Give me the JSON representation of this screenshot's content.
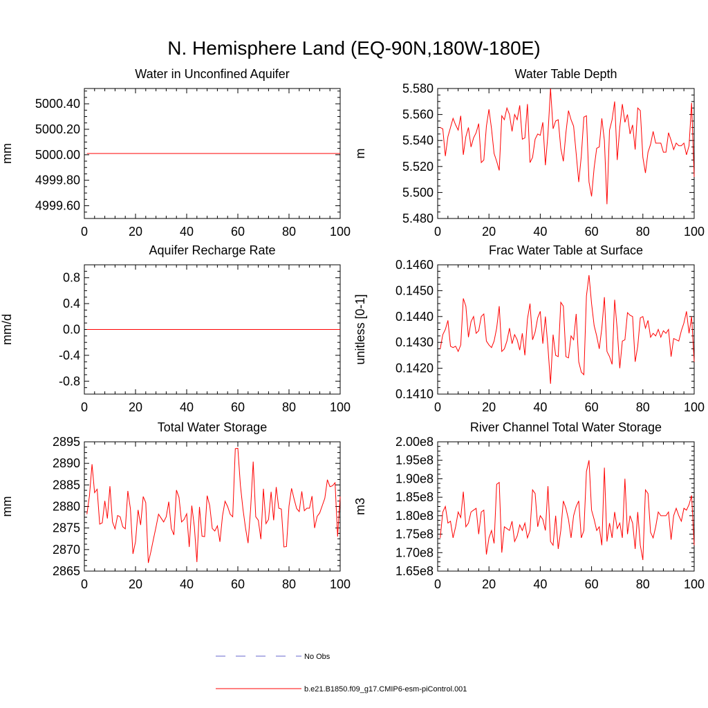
{
  "title": "N. Hemisphere Land (EQ-90N,180W-180E)",
  "chart_data": [
    {
      "type": "line",
      "title": "Water in Unconfined Aquifer",
      "ylabel": "mm",
      "xlim": [
        0,
        100
      ],
      "ylim": [
        4999.5,
        5000.52
      ],
      "xticks": [
        0,
        20,
        40,
        60,
        80,
        100
      ],
      "xtick_labels": [
        "0",
        "20",
        "40",
        "60",
        "80",
        "100"
      ],
      "yticks": [
        4999.6,
        4999.8,
        5000.0,
        5000.2,
        5000.4
      ],
      "ytick_labels": [
        "4999.60",
        "4999.80",
        "5000.00",
        "5000.20",
        "5000.40"
      ],
      "series": [
        {
          "color": "#ff0000",
          "x": [
            1,
            100
          ],
          "y": [
            5000.01,
            5000.01
          ]
        }
      ]
    },
    {
      "type": "line",
      "title": "Water Table Depth",
      "ylabel": "m",
      "xlim": [
        0,
        100
      ],
      "ylim": [
        5.48,
        5.58
      ],
      "xticks": [
        0,
        20,
        40,
        60,
        80,
        100
      ],
      "xtick_labels": [
        "0",
        "20",
        "40",
        "60",
        "80",
        "100"
      ],
      "yticks": [
        5.48,
        5.5,
        5.52,
        5.54,
        5.56,
        5.58
      ],
      "ytick_labels": [
        "5.480",
        "5.500",
        "5.520",
        "5.540",
        "5.560",
        "5.580"
      ],
      "series": [
        {
          "color": "#ff0000",
          "x": [
            1,
            2,
            3,
            4,
            5,
            6,
            7,
            8,
            9,
            10,
            11,
            12,
            13,
            14,
            15,
            16,
            17,
            18,
            19,
            20,
            21,
            22,
            23,
            24,
            25,
            26,
            27,
            28,
            29,
            30,
            31,
            32,
            33,
            34,
            35,
            36,
            37,
            38,
            39,
            40,
            41,
            42,
            43,
            44,
            45,
            46,
            47,
            48,
            49,
            50,
            51,
            52,
            53,
            54,
            55,
            56,
            57,
            58,
            59,
            60,
            61,
            62,
            63,
            64,
            65,
            66,
            67,
            68,
            69,
            70,
            71,
            72,
            73,
            74,
            75,
            76,
            77,
            78,
            79,
            80,
            81,
            82,
            83,
            84,
            85,
            86,
            87,
            88,
            89,
            90,
            91,
            92,
            93,
            94,
            95,
            96,
            97,
            98,
            99,
            100
          ],
          "y": [
            5.55,
            5.549,
            5.528,
            5.543,
            5.55,
            5.557,
            5.552,
            5.548,
            5.559,
            5.529,
            5.543,
            5.55,
            5.535,
            5.542,
            5.546,
            5.553,
            5.523,
            5.525,
            5.551,
            5.564,
            5.549,
            5.53,
            5.524,
            5.517,
            5.559,
            5.556,
            5.565,
            5.56,
            5.547,
            5.56,
            5.556,
            5.567,
            5.541,
            5.542,
            5.568,
            5.523,
            5.527,
            5.541,
            5.545,
            5.544,
            5.554,
            5.521,
            5.545,
            5.58,
            5.549,
            5.555,
            5.556,
            5.534,
            5.524,
            5.546,
            5.563,
            5.556,
            5.551,
            5.53,
            5.508,
            5.528,
            5.558,
            5.559,
            5.508,
            5.497,
            5.519,
            5.534,
            5.535,
            5.557,
            5.54,
            5.491,
            5.548,
            5.556,
            5.57,
            5.525,
            5.55,
            5.568,
            5.554,
            5.56,
            5.545,
            5.552,
            5.533,
            5.565,
            5.563,
            5.527,
            5.515,
            5.531,
            5.537,
            5.547,
            5.538,
            5.538,
            5.538,
            5.531,
            5.531,
            5.546,
            5.54,
            5.533,
            5.538,
            5.536,
            5.536,
            5.538,
            5.529,
            5.536,
            5.569,
            5.512
          ]
        }
      ]
    },
    {
      "type": "line",
      "title": "Aquifer Recharge Rate",
      "ylabel": "mm/d",
      "xlim": [
        0,
        100
      ],
      "ylim": [
        -1.0,
        1.0
      ],
      "xticks": [
        0,
        20,
        40,
        60,
        80,
        100
      ],
      "xtick_labels": [
        "0",
        "20",
        "40",
        "60",
        "80",
        "100"
      ],
      "yticks": [
        -0.8,
        -0.4,
        0.0,
        0.4,
        0.8
      ],
      "ytick_labels": [
        "-0.8",
        "-0.4",
        "0.0",
        "0.4",
        "0.8"
      ],
      "series": [
        {
          "color": "#ff0000",
          "x": [
            1,
            100
          ],
          "y": [
            0.0,
            0.0
          ]
        }
      ]
    },
    {
      "type": "line",
      "title": "Frac Water Table at Surface",
      "ylabel": "unitless [0-1]",
      "xlim": [
        0,
        100
      ],
      "ylim": [
        0.141,
        0.146
      ],
      "xticks": [
        0,
        20,
        40,
        60,
        80,
        100
      ],
      "xtick_labels": [
        "0",
        "20",
        "40",
        "60",
        "80",
        "100"
      ],
      "yticks": [
        0.141,
        0.142,
        0.143,
        0.144,
        0.145,
        0.146
      ],
      "ytick_labels": [
        "0.1410",
        "0.1420",
        "0.1430",
        "0.1440",
        "0.1450",
        "0.1460"
      ],
      "series": [
        {
          "color": "#ff0000",
          "x": [
            1,
            2,
            3,
            4,
            5,
            6,
            7,
            8,
            9,
            10,
            11,
            12,
            13,
            14,
            15,
            16,
            17,
            18,
            19,
            20,
            21,
            22,
            23,
            24,
            25,
            26,
            27,
            28,
            29,
            30,
            31,
            32,
            33,
            34,
            35,
            36,
            37,
            38,
            39,
            40,
            41,
            42,
            43,
            44,
            45,
            46,
            47,
            48,
            49,
            50,
            51,
            52,
            53,
            54,
            55,
            56,
            57,
            58,
            59,
            60,
            61,
            62,
            63,
            64,
            65,
            66,
            67,
            68,
            69,
            70,
            71,
            72,
            73,
            74,
            75,
            76,
            77,
            78,
            79,
            80,
            81,
            82,
            83,
            84,
            85,
            86,
            87,
            88,
            89,
            90,
            91,
            92,
            93,
            94,
            95,
            96,
            97,
            98,
            99,
            100
          ],
          "y": [
            0.14275,
            0.1433,
            0.1435,
            0.14385,
            0.14285,
            0.1428,
            0.14285,
            0.14265,
            0.1429,
            0.1447,
            0.1444,
            0.1432,
            0.1438,
            0.144,
            0.14335,
            0.14345,
            0.144,
            0.1441,
            0.14305,
            0.1429,
            0.1428,
            0.14305,
            0.14355,
            0.1444,
            0.14265,
            0.14275,
            0.14305,
            0.14355,
            0.14295,
            0.1433,
            0.1431,
            0.1427,
            0.14335,
            0.1425,
            0.1439,
            0.1445,
            0.1431,
            0.1434,
            0.14395,
            0.1442,
            0.14295,
            0.144,
            0.1428,
            0.1414,
            0.1433,
            0.1425,
            0.14245,
            0.14455,
            0.1444,
            0.14245,
            0.1424,
            0.14325,
            0.1431,
            0.1441,
            0.14225,
            0.14185,
            0.14175,
            0.1448,
            0.1456,
            0.1445,
            0.14365,
            0.14325,
            0.14275,
            0.14355,
            0.14475,
            0.14265,
            0.14245,
            0.14215,
            0.14465,
            0.1435,
            0.142,
            0.14305,
            0.1431,
            0.14415,
            0.14405,
            0.144,
            0.14225,
            0.14285,
            0.14395,
            0.144,
            0.14355,
            0.14385,
            0.1432,
            0.14335,
            0.14325,
            0.1435,
            0.1432,
            0.14345,
            0.14335,
            0.1435,
            0.14245,
            0.14315,
            0.1431,
            0.14305,
            0.14345,
            0.14375,
            0.1442,
            0.14335,
            0.144,
            0.14225
          ]
        }
      ]
    },
    {
      "type": "line",
      "title": "Total Water Storage",
      "ylabel": "mm",
      "xlim": [
        0,
        100
      ],
      "ylim": [
        2865,
        2895
      ],
      "xticks": [
        0,
        20,
        40,
        60,
        80,
        100
      ],
      "xtick_labels": [
        "0",
        "20",
        "40",
        "60",
        "80",
        "100"
      ],
      "yticks": [
        2865,
        2870,
        2875,
        2880,
        2885,
        2890,
        2895
      ],
      "ytick_labels": [
        "2865",
        "2870",
        "2875",
        "2880",
        "2885",
        "2890",
        "2895"
      ],
      "series": [
        {
          "color": "#ff0000",
          "x": [
            1,
            2,
            3,
            4,
            5,
            6,
            7,
            8,
            9,
            10,
            11,
            12,
            13,
            14,
            15,
            16,
            17,
            18,
            19,
            20,
            21,
            22,
            23,
            24,
            25,
            26,
            27,
            28,
            29,
            30,
            31,
            32,
            33,
            34,
            35,
            36,
            37,
            38,
            39,
            40,
            41,
            42,
            43,
            44,
            45,
            46,
            47,
            48,
            49,
            50,
            51,
            52,
            53,
            54,
            55,
            56,
            57,
            58,
            59,
            60,
            61,
            62,
            63,
            64,
            65,
            66,
            67,
            68,
            69,
            70,
            71,
            72,
            73,
            74,
            75,
            76,
            77,
            78,
            79,
            80,
            81,
            82,
            83,
            84,
            85,
            86,
            87,
            88,
            89,
            90,
            91,
            92,
            93,
            94,
            95,
            96,
            97,
            98,
            99,
            100
          ],
          "y": [
            2878.2,
            2882.5,
            2889.8,
            2883.2,
            2884.0,
            2875.9,
            2876.2,
            2881.3,
            2877.2,
            2884.7,
            2876.4,
            2874.8,
            2877.9,
            2877.6,
            2875.3,
            2874.8,
            2883.6,
            2879.5,
            2869.0,
            2871.8,
            2879.2,
            2875.7,
            2882.3,
            2880.9,
            2866.9,
            2869.5,
            2872.4,
            2875.2,
            2878.2,
            2877.3,
            2876.4,
            2877.6,
            2881.1,
            2874.9,
            2873.4,
            2883.8,
            2882.1,
            2876.4,
            2877.0,
            2878.3,
            2870.6,
            2880.2,
            2875.3,
            2867.1,
            2879.9,
            2873.1,
            2873.0,
            2882.5,
            2880.2,
            2874.9,
            2874.3,
            2875.5,
            2871.8,
            2877.8,
            2881.2,
            2880.0,
            2878.2,
            2877.6,
            2893.4,
            2893.5,
            2884.9,
            2879.4,
            2875.0,
            2871.5,
            2879.5,
            2890.4,
            2877.6,
            2876.8,
            2872.4,
            2884.1,
            2876.0,
            2877.0,
            2883.4,
            2876.8,
            2884.5,
            2879.6,
            2879.4,
            2870.6,
            2870.7,
            2880.1,
            2884.2,
            2881.7,
            2879.5,
            2878.8,
            2883.5,
            2879.0,
            2879.6,
            2879.6,
            2882.4,
            2875.0,
            2877.7,
            2878.5,
            2880.2,
            2881.9,
            2886.2,
            2884.6,
            2884.8,
            2885.5,
            2873.0,
            2882.3
          ]
        }
      ]
    },
    {
      "type": "line",
      "title": "River Channel Total Water Storage",
      "ylabel": "m3",
      "xlim": [
        0,
        100
      ],
      "ylim": [
        1.65,
        2.0
      ],
      "xticks": [
        0,
        20,
        40,
        60,
        80,
        100
      ],
      "xtick_labels": [
        "0",
        "20",
        "40",
        "60",
        "80",
        "100"
      ],
      "yticks": [
        1.65,
        1.7,
        1.75,
        1.8,
        1.85,
        1.9,
        1.95,
        2.0
      ],
      "ytick_labels": [
        "1.65e8",
        "1.70e8",
        "1.75e8",
        "1.80e8",
        "1.85e8",
        "1.90e8",
        "1.95e8",
        "2.00e8"
      ],
      "y_unit_multiplier": "1e8",
      "series": [
        {
          "color": "#ff0000",
          "x": [
            1,
            2,
            3,
            4,
            5,
            6,
            7,
            8,
            9,
            10,
            11,
            12,
            13,
            14,
            15,
            16,
            17,
            18,
            19,
            20,
            21,
            22,
            23,
            24,
            25,
            26,
            27,
            28,
            29,
            30,
            31,
            32,
            33,
            34,
            35,
            36,
            37,
            38,
            39,
            40,
            41,
            42,
            43,
            44,
            45,
            46,
            47,
            48,
            49,
            50,
            51,
            52,
            53,
            54,
            55,
            56,
            57,
            58,
            59,
            60,
            61,
            62,
            63,
            64,
            65,
            66,
            67,
            68,
            69,
            70,
            71,
            72,
            73,
            74,
            75,
            76,
            77,
            78,
            79,
            80,
            81,
            82,
            83,
            84,
            85,
            86,
            87,
            88,
            89,
            90,
            91,
            92,
            93,
            94,
            95,
            96,
            97,
            98,
            99,
            100
          ],
          "y": [
            1.74,
            1.81,
            1.825,
            1.78,
            1.785,
            1.74,
            1.77,
            1.81,
            1.795,
            1.865,
            1.77,
            1.78,
            1.81,
            1.815,
            1.82,
            1.75,
            1.81,
            1.815,
            1.695,
            1.74,
            1.76,
            1.725,
            1.885,
            1.89,
            1.7,
            1.77,
            1.765,
            1.76,
            1.785,
            1.73,
            1.745,
            1.775,
            1.76,
            1.78,
            1.74,
            1.76,
            1.87,
            1.86,
            1.77,
            1.8,
            1.79,
            1.76,
            1.88,
            1.73,
            1.72,
            1.8,
            1.71,
            1.76,
            1.84,
            1.82,
            1.79,
            1.74,
            1.8,
            1.825,
            1.84,
            1.74,
            1.76,
            1.92,
            1.95,
            1.815,
            1.79,
            1.76,
            1.77,
            1.72,
            1.93,
            1.73,
            1.78,
            1.74,
            1.81,
            1.765,
            1.78,
            1.74,
            1.9,
            1.75,
            1.8,
            1.78,
            1.71,
            1.81,
            1.72,
            1.68,
            1.87,
            1.86,
            1.755,
            1.74,
            1.77,
            1.81,
            1.8,
            1.8,
            1.8,
            1.81,
            1.735,
            1.8,
            1.82,
            1.8,
            1.785,
            1.82,
            1.815,
            1.83,
            1.855,
            1.72
          ]
        }
      ]
    }
  ],
  "legend": {
    "items": [
      {
        "label": "No Obs",
        "color": "#6666cc",
        "dashed": true
      },
      {
        "label": "b.e21.B1850.f09_g17.CMIP6-esm-piControl.001",
        "color": "#ff0000",
        "dashed": false
      }
    ]
  }
}
